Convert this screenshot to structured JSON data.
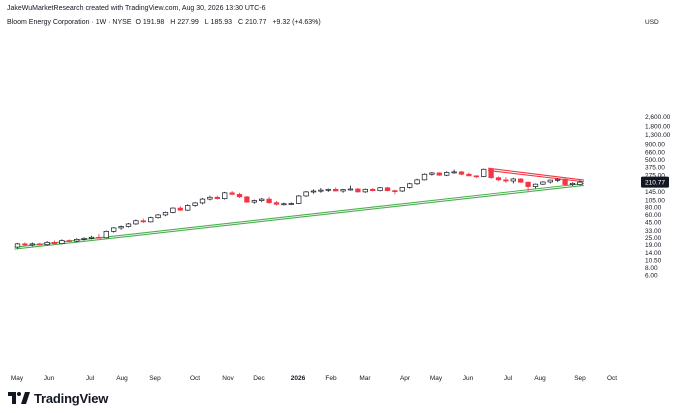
{
  "header": {
    "credit": "JakeWuMarketResearch created with TradingView.com, Aug 30, 2026 13:30 UTC-6",
    "symbol_line": "Bloom Energy Corporation · 1W · NYSE",
    "ohlc": {
      "o_label": "O",
      "o_value": "191.98",
      "h_label": "H",
      "h_value": "227.99",
      "l_label": "L",
      "l_value": "185.93",
      "c_label": "C",
      "c_value": "210.77",
      "change": "+9.32 (+4.63%)"
    }
  },
  "logo": {
    "text": "TradingView"
  },
  "colors": {
    "up_body": "#ffffff",
    "up_border": "#131722",
    "down_body": "#f23645",
    "support_line": "#4caf50",
    "resistance_line": "#f23645",
    "price_label_bg": "#131722",
    "grid": "#f2f3f5"
  },
  "chart_data": {
    "type": "candlestick",
    "scale": "log",
    "currency": "USD",
    "grid": false,
    "last_price": "210.77",
    "y_ticks": [
      "2,600.00",
      "1,800.00",
      "1,300.00",
      "900.00",
      "660.00",
      "500.00",
      "375.00",
      "275.00",
      "200.00",
      "145.00",
      "105.00",
      "80.00",
      "60.00",
      "45.00",
      "33.00",
      "25.00",
      "19.00",
      "14.00",
      "10.50",
      "8.00",
      "6.00"
    ],
    "x_ticks": [
      "May",
      "Jun",
      "Jul",
      "Aug",
      "Sep",
      "Oct",
      "Nov",
      "Dec",
      "2026",
      "Feb",
      "Mar",
      "Apr",
      "May",
      "Jun",
      "Jul",
      "Aug",
      "Sep",
      "Oct"
    ],
    "x_bold": [
      "2026"
    ],
    "candles": [
      {
        "o": 17.5,
        "h": 20.5,
        "l": 16.5,
        "c": 19.8
      },
      {
        "o": 19.8,
        "h": 21,
        "l": 18.2,
        "c": 19.0
      },
      {
        "o": 19.0,
        "h": 20.8,
        "l": 18.0,
        "c": 19.8
      },
      {
        "o": 19.8,
        "h": 20.5,
        "l": 18.8,
        "c": 19.2
      },
      {
        "o": 19.2,
        "h": 22,
        "l": 18.5,
        "c": 21.0
      },
      {
        "o": 21.0,
        "h": 22.5,
        "l": 19.2,
        "c": 20.0
      },
      {
        "o": 20.0,
        "h": 23.5,
        "l": 19.5,
        "c": 22.5
      },
      {
        "o": 22.5,
        "h": 23.5,
        "l": 21.2,
        "c": 22.0
      },
      {
        "o": 22.0,
        "h": 24.5,
        "l": 21.2,
        "c": 23.5
      },
      {
        "o": 23.5,
        "h": 25.5,
        "l": 22.5,
        "c": 24.5
      },
      {
        "o": 24.5,
        "h": 27.0,
        "l": 23.5,
        "c": 25.5
      },
      {
        "o": 25.5,
        "h": 29.0,
        "l": 24.5,
        "c": 25.0
      },
      {
        "o": 25.0,
        "h": 33.0,
        "l": 24.5,
        "c": 32.0
      },
      {
        "o": 32.0,
        "h": 37.5,
        "l": 30.5,
        "c": 36.5
      },
      {
        "o": 36.5,
        "h": 40.0,
        "l": 34.0,
        "c": 38.5
      },
      {
        "o": 38.5,
        "h": 44.0,
        "l": 37.0,
        "c": 42.5
      },
      {
        "o": 42.5,
        "h": 50.0,
        "l": 41.0,
        "c": 48.0
      },
      {
        "o": 48.0,
        "h": 52.0,
        "l": 44.0,
        "c": 46.0
      },
      {
        "o": 46.0,
        "h": 56.0,
        "l": 45.0,
        "c": 54.0
      },
      {
        "o": 54.0,
        "h": 62.0,
        "l": 52.0,
        "c": 60.0
      },
      {
        "o": 60.0,
        "h": 68.0,
        "l": 57.0,
        "c": 66.0
      },
      {
        "o": 66.0,
        "h": 80.0,
        "l": 64.0,
        "c": 78.0
      },
      {
        "o": 78.0,
        "h": 84.0,
        "l": 70.0,
        "c": 72.0
      },
      {
        "o": 72.0,
        "h": 90.0,
        "l": 70.0,
        "c": 86.0
      },
      {
        "o": 86.0,
        "h": 98.0,
        "l": 82.0,
        "c": 95.0
      },
      {
        "o": 95.0,
        "h": 115.0,
        "l": 90.0,
        "c": 110.0
      },
      {
        "o": 110.0,
        "h": 125.0,
        "l": 105.0,
        "c": 118.0
      },
      {
        "o": 118.0,
        "h": 126.0,
        "l": 108.0,
        "c": 112.0
      },
      {
        "o": 112.0,
        "h": 145.0,
        "l": 108.0,
        "c": 140.0
      },
      {
        "o": 140.0,
        "h": 150.0,
        "l": 128.0,
        "c": 132.0
      },
      {
        "o": 132.0,
        "h": 140.0,
        "l": 115.0,
        "c": 120.0
      },
      {
        "o": 120.0,
        "h": 124.0,
        "l": 95.0,
        "c": 98.0
      },
      {
        "o": 98.0,
        "h": 108.0,
        "l": 92.0,
        "c": 104.0
      },
      {
        "o": 104.0,
        "h": 115.0,
        "l": 98.0,
        "c": 110.0
      },
      {
        "o": 110.0,
        "h": 120.0,
        "l": 92.0,
        "c": 96.0
      },
      {
        "o": 96.0,
        "h": 103.0,
        "l": 86.0,
        "c": 90.0
      },
      {
        "o": 90.0,
        "h": 96.0,
        "l": 86.0,
        "c": 92.0
      },
      {
        "o": 92.0,
        "h": 97.0,
        "l": 88.0,
        "c": 93.0
      },
      {
        "o": 93.0,
        "h": 128.0,
        "l": 91.0,
        "c": 124.0
      },
      {
        "o": 124.0,
        "h": 150.0,
        "l": 120.0,
        "c": 145.0
      },
      {
        "o": 145.0,
        "h": 160.0,
        "l": 136.0,
        "c": 150.0
      },
      {
        "o": 150.0,
        "h": 168.0,
        "l": 140.0,
        "c": 155.0
      },
      {
        "o": 155.0,
        "h": 165.0,
        "l": 145.0,
        "c": 160.0
      },
      {
        "o": 160.0,
        "h": 172.0,
        "l": 148.0,
        "c": 150.0
      },
      {
        "o": 150.0,
        "h": 162.0,
        "l": 140.0,
        "c": 158.0
      },
      {
        "o": 158.0,
        "h": 185.0,
        "l": 152.0,
        "c": 162.0
      },
      {
        "o": 162.0,
        "h": 168.0,
        "l": 140.0,
        "c": 145.0
      },
      {
        "o": 145.0,
        "h": 165.0,
        "l": 140.0,
        "c": 160.0
      },
      {
        "o": 160.0,
        "h": 168.0,
        "l": 148.0,
        "c": 152.0
      },
      {
        "o": 152.0,
        "h": 175.0,
        "l": 148.0,
        "c": 170.0
      },
      {
        "o": 170.0,
        "h": 176.0,
        "l": 148.0,
        "c": 152.0
      },
      {
        "o": 152.0,
        "h": 158.0,
        "l": 132.0,
        "c": 150.0
      },
      {
        "o": 150.0,
        "h": 175.0,
        "l": 145.0,
        "c": 172.0
      },
      {
        "o": 172.0,
        "h": 205.0,
        "l": 165.0,
        "c": 198.0
      },
      {
        "o": 198.0,
        "h": 240.0,
        "l": 190.0,
        "c": 230.0
      },
      {
        "o": 230.0,
        "h": 295.0,
        "l": 225.0,
        "c": 285.0
      },
      {
        "o": 285.0,
        "h": 310.0,
        "l": 270.0,
        "c": 300.0
      },
      {
        "o": 300.0,
        "h": 308.0,
        "l": 268.0,
        "c": 275.0
      },
      {
        "o": 275.0,
        "h": 320.0,
        "l": 265.0,
        "c": 305.0
      },
      {
        "o": 305.0,
        "h": 340.0,
        "l": 290.0,
        "c": 312.0
      },
      {
        "o": 312.0,
        "h": 325.0,
        "l": 275.0,
        "c": 285.0
      },
      {
        "o": 285.0,
        "h": 305.0,
        "l": 265.0,
        "c": 268.0
      },
      {
        "o": 268.0,
        "h": 275.0,
        "l": 245.0,
        "c": 262.0
      },
      {
        "o": 262.0,
        "h": 355.0,
        "l": 255.0,
        "c": 345.0
      },
      {
        "o": 345.0,
        "h": 352.0,
        "l": 240.0,
        "c": 250.0
      },
      {
        "o": 250.0,
        "h": 262.0,
        "l": 220.0,
        "c": 230.0
      },
      {
        "o": 230.0,
        "h": 255.0,
        "l": 205.0,
        "c": 220.0
      },
      {
        "o": 220.0,
        "h": 248.0,
        "l": 200.0,
        "c": 238.0
      },
      {
        "o": 238.0,
        "h": 245.0,
        "l": 205.0,
        "c": 210.0
      },
      {
        "o": 210.0,
        "h": 215.0,
        "l": 150.0,
        "c": 178.0
      },
      {
        "o": 178.0,
        "h": 200.0,
        "l": 165.0,
        "c": 195.0
      },
      {
        "o": 195.0,
        "h": 218.0,
        "l": 190.0,
        "c": 212.0
      },
      {
        "o": 212.0,
        "h": 232.0,
        "l": 200.0,
        "c": 228.0
      },
      {
        "o": 228.0,
        "h": 245.0,
        "l": 212.0,
        "c": 235.0
      },
      {
        "o": 235.0,
        "h": 248.0,
        "l": 180.0,
        "c": 192.0
      },
      {
        "o": 192.0,
        "h": 210.0,
        "l": 182.0,
        "c": 201.45
      },
      {
        "o": 191.98,
        "h": 227.99,
        "l": 185.93,
        "c": 210.77
      }
    ],
    "trendlines": [
      {
        "name": "support-upper",
        "color": "green",
        "from": {
          "bar": 0,
          "price": 17.4
        },
        "to": {
          "bar": 76,
          "price": 200.0
        }
      },
      {
        "name": "support-lower",
        "color": "green",
        "from": {
          "bar": 0,
          "price": 16.2
        },
        "to": {
          "bar": 76,
          "price": 186.0
        }
      },
      {
        "name": "resistance-upper",
        "color": "red",
        "from": {
          "bar": 64,
          "price": 360.0
        },
        "to": {
          "bar": 76,
          "price": 228.0
        }
      },
      {
        "name": "resistance-lower",
        "color": "red",
        "from": {
          "bar": 64,
          "price": 330.0
        },
        "to": {
          "bar": 76,
          "price": 214.0
        }
      }
    ]
  }
}
